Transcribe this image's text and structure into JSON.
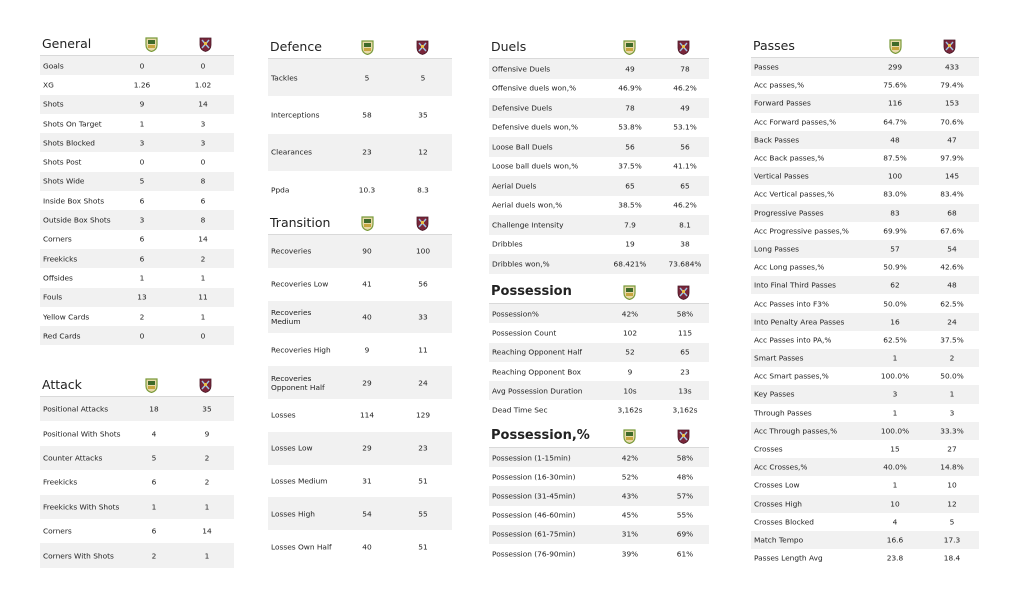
{
  "colors": {
    "team_a_crest": "#7a9b3c",
    "team_b_crest": "#7a263a",
    "band": "#f1f1f1"
  },
  "general": {
    "title": "General",
    "rows": [
      {
        "label": "Goals",
        "a": "0",
        "b": "0"
      },
      {
        "label": "XG",
        "a": "1.26",
        "b": "1.02"
      },
      {
        "label": "Shots",
        "a": "9",
        "b": "14"
      },
      {
        "label": "Shots On Target",
        "a": "1",
        "b": "3"
      },
      {
        "label": "Shots Blocked",
        "a": "3",
        "b": "3"
      },
      {
        "label": "Shots Post",
        "a": "0",
        "b": "0"
      },
      {
        "label": "Shots Wide",
        "a": "5",
        "b": "8"
      },
      {
        "label": "Inside Box Shots",
        "a": "6",
        "b": "6"
      },
      {
        "label": "Outside Box Shots",
        "a": "3",
        "b": "8"
      },
      {
        "label": "Corners",
        "a": "6",
        "b": "14"
      },
      {
        "label": "Freekicks",
        "a": "6",
        "b": "2"
      },
      {
        "label": "Offsides",
        "a": "1",
        "b": "1"
      },
      {
        "label": "Fouls",
        "a": "13",
        "b": "11"
      },
      {
        "label": "Yellow Cards",
        "a": "2",
        "b": "1"
      },
      {
        "label": "Red Cards",
        "a": "0",
        "b": "0"
      }
    ]
  },
  "attack": {
    "title": "Attack",
    "rows": [
      {
        "label": "Positional Attacks",
        "a": "18",
        "b": "35"
      },
      {
        "label": "Positional With Shots",
        "a": "4",
        "b": "9"
      },
      {
        "label": "Counter Attacks",
        "a": "5",
        "b": "2"
      },
      {
        "label": "Freekicks",
        "a": "6",
        "b": "2"
      },
      {
        "label": "Freekicks With Shots",
        "a": "1",
        "b": "1"
      },
      {
        "label": "Corners",
        "a": "6",
        "b": "14"
      },
      {
        "label": "Corners With Shots",
        "a": "2",
        "b": "1"
      }
    ]
  },
  "defence": {
    "title": "Defence",
    "rows": [
      {
        "label": "Tackles",
        "a": "5",
        "b": "5"
      },
      {
        "label": "Interceptions",
        "a": "58",
        "b": "35"
      },
      {
        "label": "Clearances",
        "a": "23",
        "b": "12"
      },
      {
        "label": "Ppda",
        "a": "10.3",
        "b": "8.3"
      }
    ]
  },
  "transition": {
    "title": "Transition",
    "rows": [
      {
        "label": "Recoveries",
        "a": "90",
        "b": "100"
      },
      {
        "label": "Recoveries Low",
        "a": "41",
        "b": "56"
      },
      {
        "label": "Recoveries Medium",
        "a": "40",
        "b": "33"
      },
      {
        "label": "Recoveries High",
        "a": "9",
        "b": "11"
      },
      {
        "label": "Recoveries Opponent Half",
        "a": "29",
        "b": "24"
      },
      {
        "label": "Losses",
        "a": "114",
        "b": "129"
      },
      {
        "label": "Losses Low",
        "a": "29",
        "b": "23"
      },
      {
        "label": "Losses Medium",
        "a": "31",
        "b": "51"
      },
      {
        "label": "Losses High",
        "a": "54",
        "b": "55"
      },
      {
        "label": "Losses Own Half",
        "a": "40",
        "b": "51"
      }
    ]
  },
  "duels": {
    "title": "Duels",
    "rows": [
      {
        "label": "Offensive Duels",
        "a": "49",
        "b": "78"
      },
      {
        "label": "Offensive duels won,%",
        "a": "46.9%",
        "b": "46.2%"
      },
      {
        "label": "Defensive Duels",
        "a": "78",
        "b": "49"
      },
      {
        "label": "Defensive duels won,%",
        "a": "53.8%",
        "b": "53.1%"
      },
      {
        "label": "Loose Ball Duels",
        "a": "56",
        "b": "56"
      },
      {
        "label": "Loose ball duels won,%",
        "a": "37.5%",
        "b": "41.1%"
      },
      {
        "label": "Aerial Duels",
        "a": "65",
        "b": "65"
      },
      {
        "label": "Aerial duels won,%",
        "a": "38.5%",
        "b": "46.2%"
      },
      {
        "label": "Challenge Intensity",
        "a": "7.9",
        "b": "8.1"
      },
      {
        "label": "Dribbles",
        "a": "19",
        "b": "38"
      },
      {
        "label": "Dribbles won,%",
        "a": "68.421%",
        "b": "73.684%"
      }
    ]
  },
  "possession": {
    "title": "Possession",
    "rows": [
      {
        "label": "Possession%",
        "a": "42%",
        "b": "58%"
      },
      {
        "label": "Possession Count",
        "a": "102",
        "b": "115"
      },
      {
        "label": "Reaching Opponent Half",
        "a": "52",
        "b": "65"
      },
      {
        "label": "Reaching Opponent Box",
        "a": "9",
        "b": "23"
      },
      {
        "label": "Avg Possession Duration",
        "a": "10s",
        "b": "13s"
      },
      {
        "label": "Dead Time Sec",
        "a": "3,162s",
        "b": "3,162s"
      }
    ]
  },
  "possession_pct": {
    "title": "Possession,%",
    "rows": [
      {
        "label": "Possession (1-15min)",
        "a": "42%",
        "b": "58%"
      },
      {
        "label": "Possession (16-30min)",
        "a": "52%",
        "b": "48%"
      },
      {
        "label": "Possession (31-45min)",
        "a": "43%",
        "b": "57%"
      },
      {
        "label": "Possession (46-60min)",
        "a": "45%",
        "b": "55%"
      },
      {
        "label": "Possession (61-75min)",
        "a": "31%",
        "b": "69%"
      },
      {
        "label": "Possession (76-90min)",
        "a": "39%",
        "b": "61%"
      }
    ]
  },
  "passes": {
    "title": "Passes",
    "rows": [
      {
        "label": "Passes",
        "a": "299",
        "b": "433"
      },
      {
        "label": "Acc passes,%",
        "a": "75.6%",
        "b": "79.4%"
      },
      {
        "label": "Forward Passes",
        "a": "116",
        "b": "153"
      },
      {
        "label": "Acc Forward passes,%",
        "a": "64.7%",
        "b": "70.6%"
      },
      {
        "label": "Back Passes",
        "a": "48",
        "b": "47"
      },
      {
        "label": "Acc Back passes,%",
        "a": "87.5%",
        "b": "97.9%"
      },
      {
        "label": "Vertical Passes",
        "a": "100",
        "b": "145"
      },
      {
        "label": "Acc Vertical passes,%",
        "a": "83.0%",
        "b": "83.4%"
      },
      {
        "label": "Progressive Passes",
        "a": "83",
        "b": "68"
      },
      {
        "label": "Acc Progressive passes,%",
        "a": "69.9%",
        "b": "67.6%"
      },
      {
        "label": "Long Passes",
        "a": "57",
        "b": "54"
      },
      {
        "label": "Acc Long passes,%",
        "a": "50.9%",
        "b": "42.6%"
      },
      {
        "label": "Into Final Third Passes",
        "a": "62",
        "b": "48"
      },
      {
        "label": "Acc Passes into F3%",
        "a": "50.0%",
        "b": "62.5%"
      },
      {
        "label": "Into Penalty Area Passes",
        "a": "16",
        "b": "24"
      },
      {
        "label": "Acc Passes into PA,%",
        "a": "62.5%",
        "b": "37.5%"
      },
      {
        "label": "Smart Passes",
        "a": "1",
        "b": "2"
      },
      {
        "label": "Acc Smart passes,%",
        "a": "100.0%",
        "b": "50.0%"
      },
      {
        "label": "Key Passes",
        "a": "3",
        "b": "1"
      },
      {
        "label": "Through Passes",
        "a": "1",
        "b": "3"
      },
      {
        "label": "Acc Through passes,%",
        "a": "100.0%",
        "b": "33.3%"
      },
      {
        "label": "Crosses",
        "a": "15",
        "b": "27"
      },
      {
        "label": "Acc Crosses,%",
        "a": "40.0%",
        "b": "14.8%"
      },
      {
        "label": "Crosses Low",
        "a": "1",
        "b": "10"
      },
      {
        "label": "Crosses High",
        "a": "10",
        "b": "12"
      },
      {
        "label": "Crosses Blocked",
        "a": "4",
        "b": "5"
      },
      {
        "label": "Match Tempo",
        "a": "16.6",
        "b": "17.3"
      },
      {
        "label": "Passes Length Avg",
        "a": "23.8",
        "b": "18.4"
      }
    ]
  }
}
